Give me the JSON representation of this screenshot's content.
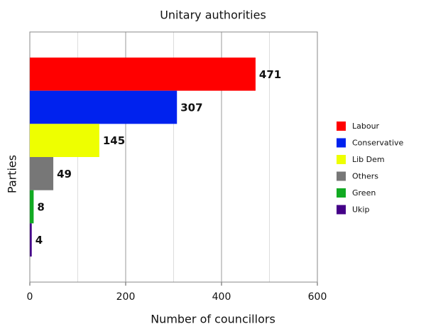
{
  "chart_data": {
    "type": "bar",
    "orientation": "horizontal",
    "title": "Unitary authorities",
    "x_label": "Number of councillors",
    "y_label": "Parties",
    "categories": [
      "Labour",
      "Conservative",
      "Lib Dem",
      "Others",
      "Green",
      "Ukip"
    ],
    "values": [
      471,
      307,
      145,
      49,
      8,
      4
    ],
    "colors": [
      "#ff0000",
      "#0022ee",
      "#eeff00",
      "#777777",
      "#11aa22",
      "#440088"
    ],
    "xlim": [
      0,
      600
    ],
    "xticks": [
      0,
      200,
      400,
      600
    ],
    "x_minor_grid": [
      100,
      300,
      500
    ],
    "grid": true,
    "legend": "right"
  }
}
